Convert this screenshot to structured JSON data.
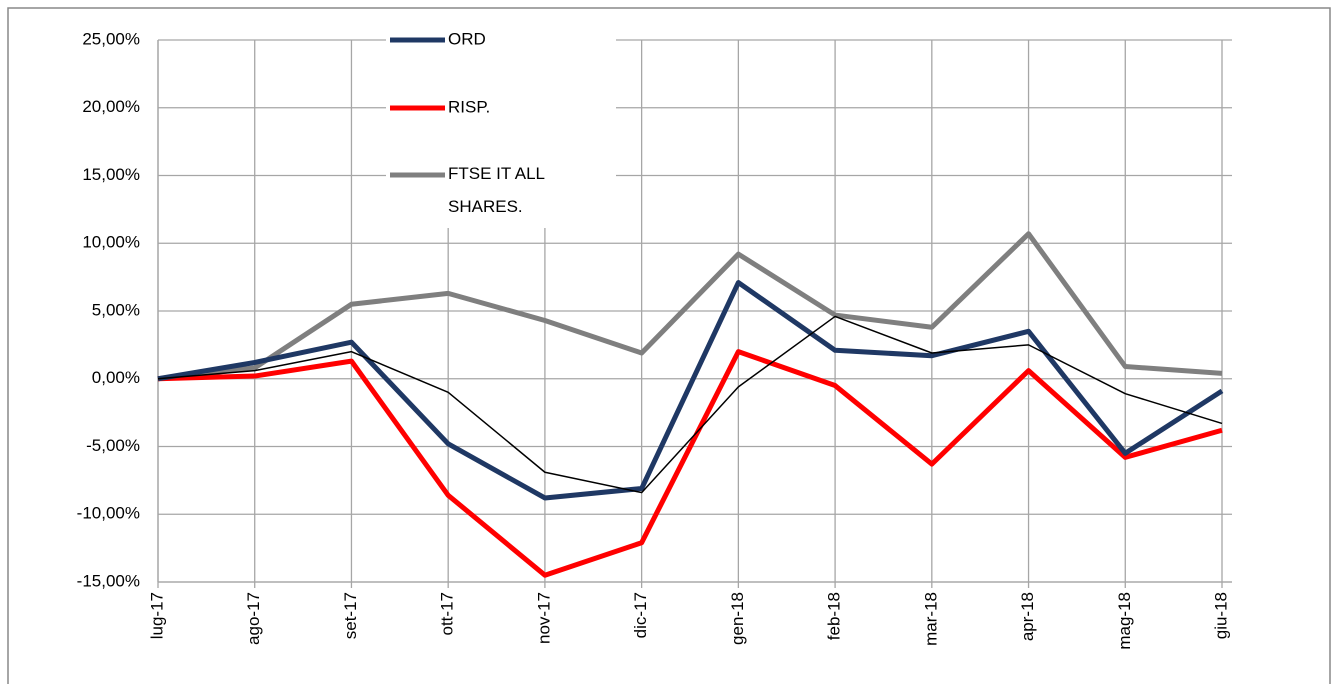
{
  "chart_data": {
    "type": "line",
    "categories": [
      "lug-17",
      "ago-17",
      "set-17",
      "ott-17",
      "nov-17",
      "dic-17",
      "gen-18",
      "feb-18",
      "mar-18",
      "apr-18",
      "mag-18",
      "giu-18"
    ],
    "series": [
      {
        "name": "ORD",
        "color": "#1f3864",
        "values": [
          0,
          1.2,
          2.7,
          -4.8,
          -8.8,
          -8.1,
          7.1,
          2.1,
          1.7,
          3.5,
          -5.5,
          -0.9
        ]
      },
      {
        "name": "RISP.",
        "color": "#ff0000",
        "values": [
          0,
          0.2,
          1.3,
          -8.6,
          -14.5,
          -12.1,
          2.0,
          -0.5,
          -6.3,
          0.6,
          -5.8,
          -3.8
        ]
      },
      {
        "name": "FTSE IT ALL SHARES.",
        "color": "#7f7f7f",
        "values": [
          0,
          0.8,
          5.5,
          6.3,
          4.3,
          1.9,
          9.2,
          4.7,
          3.8,
          10.7,
          0.9,
          0.4
        ]
      },
      {
        "color": "#000000",
        "values": [
          0,
          0.6,
          2.0,
          -1.0,
          -6.9,
          -8.4,
          -0.6,
          4.6,
          1.9,
          2.5,
          -1.1,
          -3.3
        ]
      }
    ],
    "ylim": [
      -15,
      25
    ],
    "yticks": [
      {
        "value": -15,
        "label": "-15,00%"
      },
      {
        "value": -10,
        "label": "-10,00%"
      },
      {
        "value": -5,
        "label": "-5,00%"
      },
      {
        "value": 0,
        "label": "0,00%"
      },
      {
        "value": 5,
        "label": "5,00%"
      },
      {
        "value": 10,
        "label": "10,00%"
      },
      {
        "value": 15,
        "label": "15,00%"
      },
      {
        "value": 20,
        "label": "20,00%"
      },
      {
        "value": 25,
        "label": "25,00%"
      }
    ],
    "grid": true
  }
}
